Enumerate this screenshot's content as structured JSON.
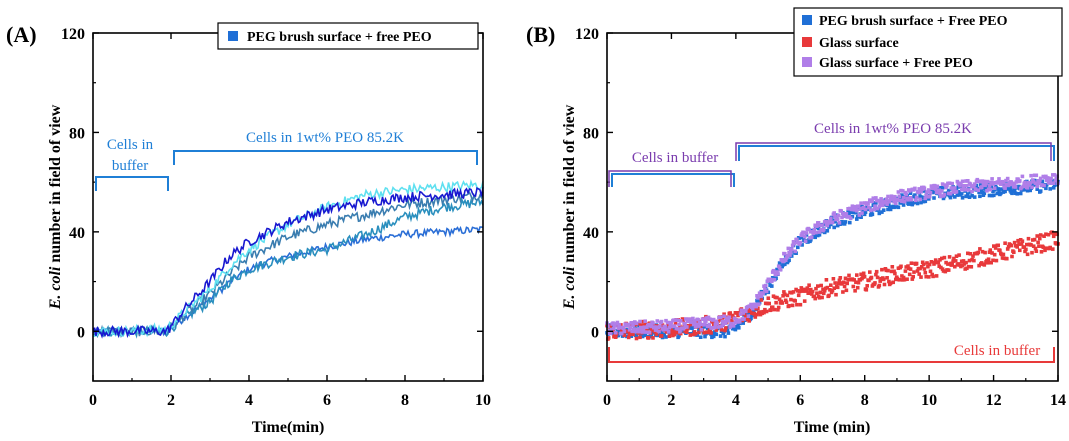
{
  "panels": {
    "A": {
      "label": "(A)",
      "legend": [
        "PEG brush surface + free PEO"
      ]
    },
    "B": {
      "label": "(B)",
      "legend": [
        "PEG brush surface + Free PEO",
        "Glass surface",
        "Glass surface + Free PEO"
      ]
    }
  },
  "colors": {
    "blue_legend": "#1f6fd6",
    "red": "#e8393b",
    "purple": "#b07ee8",
    "annot_blue": "#1f7fd6",
    "annot_purple": "#7a3cae",
    "annot_red": "#e83a3a"
  },
  "chart_data": [
    {
      "type": "line",
      "panel": "A",
      "xlabel": "Time(min)",
      "ylabel_italic": "E. coli",
      "ylabel_rest": " number in field of view",
      "xlim": [
        0,
        10
      ],
      "ylim": [
        -20,
        120
      ],
      "xticks": [
        "0",
        "2",
        "4",
        "6",
        "8",
        "10"
      ],
      "yticks": [
        "0",
        "40",
        "80",
        "120"
      ],
      "legend_position": "top-right",
      "series": [
        {
          "name": "PEG brush surface + free PEO",
          "color": "#2a6ed6",
          "noise": 1.5,
          "points": [
            [
              0,
              0
            ],
            [
              1,
              0
            ],
            [
              1.9,
              0
            ],
            [
              2.3,
              5
            ],
            [
              3,
              13
            ],
            [
              3.6,
              21
            ],
            [
              4,
              25
            ],
            [
              4.5,
              28
            ],
            [
              5,
              30
            ],
            [
              6,
              34
            ],
            [
              7,
              37
            ],
            [
              8,
              39
            ],
            [
              9,
              40
            ],
            [
              10,
              41
            ]
          ]
        },
        {
          "name": "",
          "color": "#2a8fbe",
          "noise": 2,
          "points": [
            [
              0,
              0
            ],
            [
              1,
              0
            ],
            [
              1.9,
              0
            ],
            [
              2.3,
              5
            ],
            [
              3,
              12
            ],
            [
              3.5,
              20
            ],
            [
              4,
              25
            ],
            [
              5,
              30
            ],
            [
              6,
              33
            ],
            [
              7,
              39
            ],
            [
              8,
              46
            ],
            [
              9,
              50
            ],
            [
              10,
              52
            ]
          ]
        },
        {
          "name": "",
          "color": "#3a7db0",
          "noise": 2,
          "points": [
            [
              0,
              0
            ],
            [
              1,
              0
            ],
            [
              1.9,
              0
            ],
            [
              2.3,
              6
            ],
            [
              3,
              15
            ],
            [
              3.5,
              23
            ],
            [
              4,
              30
            ],
            [
              5,
              38
            ],
            [
              6,
              43
            ],
            [
              7,
              47
            ],
            [
              8,
              51
            ],
            [
              9,
              53
            ],
            [
              10,
              55
            ]
          ]
        },
        {
          "name": "",
          "color": "#5fe0f0",
          "noise": 2,
          "points": [
            [
              0,
              0
            ],
            [
              1,
              0
            ],
            [
              1.9,
              1
            ],
            [
              2.3,
              7
            ],
            [
              3,
              17
            ],
            [
              3.5,
              26
            ],
            [
              4,
              33
            ],
            [
              5,
              43
            ],
            [
              6,
              50
            ],
            [
              7,
              55
            ],
            [
              8,
              57
            ],
            [
              9,
              58
            ],
            [
              10,
              59
            ]
          ]
        },
        {
          "name": "",
          "color": "#1818d0",
          "noise": 2,
          "points": [
            [
              0,
              0
            ],
            [
              1,
              0
            ],
            [
              1.9,
              0
            ],
            [
              2.3,
              8
            ],
            [
              3,
              20
            ],
            [
              3.5,
              30
            ],
            [
              4,
              36
            ],
            [
              5,
              44
            ],
            [
              6,
              49
            ],
            [
              7,
              52
            ],
            [
              8,
              54
            ],
            [
              9,
              55
            ],
            [
              10,
              56
            ]
          ]
        }
      ]
    },
    {
      "type": "scatter",
      "panel": "B",
      "xlabel": "Time (min)",
      "ylabel_italic": "E. coli",
      "ylabel_rest": " number in field of view",
      "xlim": [
        0,
        14
      ],
      "ylim": [
        -20,
        120
      ],
      "xticks": [
        "0",
        "2",
        "4",
        "6",
        "8",
        "10",
        "12",
        "14"
      ],
      "yticks": [
        "0",
        "40",
        "80",
        "120"
      ],
      "legend_position": "top-right",
      "series": [
        {
          "name": "PEG brush surface + Free PEO",
          "color": "#1f6fd6",
          "noise": 2.5,
          "points": [
            [
              0,
              0
            ],
            [
              2,
              0
            ],
            [
              3.9,
              0
            ],
            [
              4.5,
              8
            ],
            [
              5,
              18
            ],
            [
              5.5,
              28
            ],
            [
              6,
              36
            ],
            [
              7,
              44
            ],
            [
              8,
              48
            ],
            [
              9,
              52
            ],
            [
              10,
              55
            ],
            [
              11,
              56
            ],
            [
              12,
              57
            ],
            [
              13,
              58
            ],
            [
              14,
              59
            ]
          ]
        },
        {
          "name": "Glass surface",
          "color": "#e8393b",
          "noise": 3.5,
          "points": [
            [
              0,
              0
            ],
            [
              2,
              1
            ],
            [
              3.5,
              3
            ],
            [
              4.5,
              8
            ],
            [
              5,
              11
            ],
            [
              6,
              14
            ],
            [
              7,
              18
            ],
            [
              8,
              20
            ],
            [
              9,
              23
            ],
            [
              10,
              25
            ],
            [
              11,
              28
            ],
            [
              12,
              31
            ],
            [
              13,
              34
            ],
            [
              14,
              37
            ]
          ]
        },
        {
          "name": "Glass surface + Free PEO",
          "color": "#b07ee8",
          "noise": 2.5,
          "points": [
            [
              0,
              1
            ],
            [
              2,
              2
            ],
            [
              3.9,
              4
            ],
            [
              4.5,
              9
            ],
            [
              5,
              19
            ],
            [
              5.5,
              29
            ],
            [
              6,
              37
            ],
            [
              7,
              45
            ],
            [
              8,
              50
            ],
            [
              9,
              54
            ],
            [
              10,
              56
            ],
            [
              11,
              58
            ],
            [
              12,
              59
            ],
            [
              13,
              60
            ],
            [
              14,
              62
            ]
          ]
        }
      ]
    }
  ],
  "annotations": {
    "A": {
      "buffer_line1": "Cells in",
      "buffer_line2": "buffer",
      "peo": "Cells in 1wt% PEO 85.2K"
    },
    "B": {
      "buffer_top": "Cells in buffer",
      "peo": "Cells in 1wt% PEO 85.2K",
      "buffer_bottom": "Cells in buffer"
    }
  }
}
